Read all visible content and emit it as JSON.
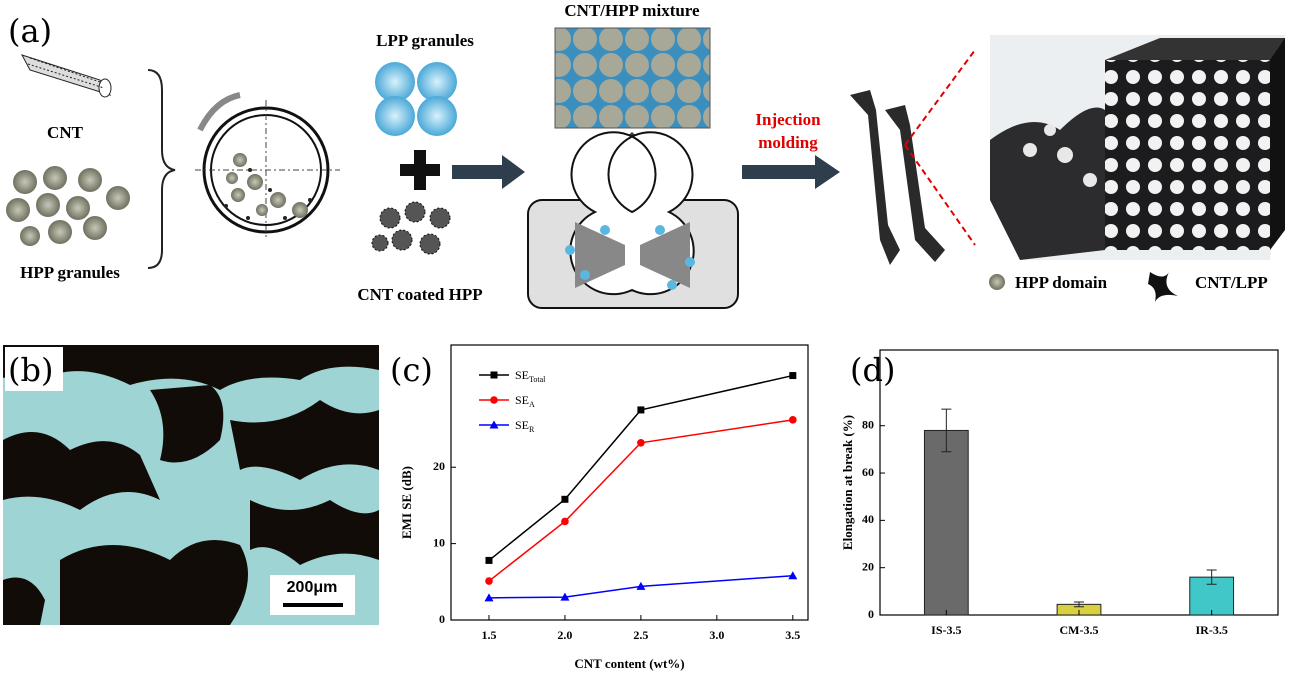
{
  "panels": {
    "a": {
      "label": "(a)",
      "cnt": "CNT",
      "hpp": "HPP granules",
      "lpp": "LPP granules",
      "coated": "CNT coated HPP",
      "mixture": "CNT/HPP mixture",
      "injection": [
        "Injection",
        "molding"
      ],
      "legend": [
        "HPP domain",
        "CNT/LPP"
      ]
    },
    "b": {
      "label": "(b)",
      "scale": "200μm"
    },
    "c": {
      "label": "(c)"
    },
    "d": {
      "label": "(d)"
    }
  },
  "chart_data": [
    {
      "type": "line",
      "xlabel": "CNT content (wt%)",
      "ylabel": "EMI SE (dB)",
      "x": [
        1.5,
        2.0,
        2.5,
        3.5
      ],
      "xlim": [
        1.25,
        3.6
      ],
      "xticks": [
        1.5,
        {
          "value": 2,
          "label": "2.0"
        },
        2.5,
        {
          "value": 3,
          "label": "3.0"
        },
        3.5
      ],
      "ylim": [
        0,
        36
      ],
      "yticks": [
        0,
        10,
        20
      ],
      "series": [
        {
          "name": "SE",
          "subscript": "Total",
          "color": "#000000",
          "marker": "square",
          "values": [
            7.8,
            15.8,
            27.5,
            32
          ]
        },
        {
          "name": "SE",
          "subscript": "A",
          "color": "#ff0000",
          "marker": "circle",
          "values": [
            5.1,
            12.9,
            23.2,
            26.2
          ]
        },
        {
          "name": "SE",
          "subscript": "R",
          "color": "#0000ff",
          "marker": "triangle",
          "values": [
            2.9,
            3.0,
            4.4,
            5.8
          ]
        }
      ]
    },
    {
      "type": "bar",
      "ylabel": "Elongation at break (%)",
      "categories": [
        "IS-3.5",
        "CM-3.5",
        "IR-3.5"
      ],
      "values": [
        78,
        4.5,
        16
      ],
      "errors": [
        9,
        1,
        3
      ],
      "colors": [
        "#6a6a6a",
        "#d8d040",
        "#40c8c8"
      ],
      "ylim": [
        0,
        112
      ],
      "yticks": [
        0,
        20,
        40,
        60,
        80
      ]
    }
  ]
}
